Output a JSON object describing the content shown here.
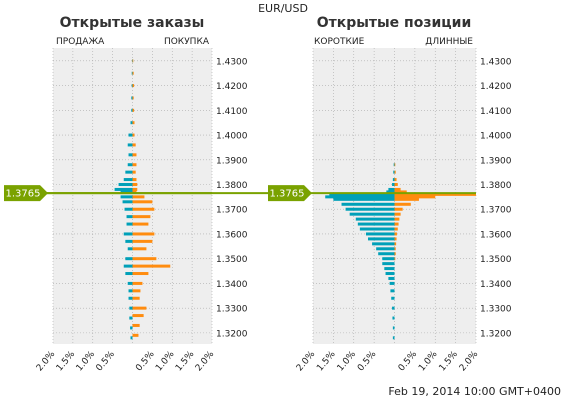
{
  "symbol": "EUR/USD",
  "timestamp": "Feb 19, 2014 10:00 GMT+0400",
  "current_price_label": "1.3765",
  "colors": {
    "short": "#00a0b8",
    "long": "#ff8c0f",
    "price": "#7aa200",
    "panel_bg": "#eeeeee",
    "grid": "#aaaaaa"
  },
  "chart_data": [
    {
      "type": "bar",
      "orientation": "horizontal",
      "title": "Открытые заказы",
      "left_label": "ПРОДАЖА",
      "right_label": "ПОКУПКА",
      "y_ticks": [
        "1.4300",
        "1.4200",
        "1.4100",
        "1.4000",
        "1.3900",
        "1.3800",
        "1.3700",
        "1.3600",
        "1.3500",
        "1.3400",
        "1.3300",
        "1.3200"
      ],
      "y_tick_values": [
        1.43,
        1.42,
        1.41,
        1.4,
        1.39,
        1.38,
        1.37,
        1.36,
        1.35,
        1.34,
        1.33,
        1.32
      ],
      "ylim": [
        1.3155,
        1.4352
      ],
      "x_ticks": [
        "2.0%",
        "1.5%",
        "1.0%",
        "0.5%",
        "",
        "0.5%",
        "1.0%",
        "1.5%",
        "2.0%"
      ],
      "xlim": [
        -2.0,
        2.0
      ],
      "current_price": 1.3765,
      "grid": true,
      "profile": {
        "bin_size": 0.0005,
        "sell": [
          [
            1.43,
            0.01
          ],
          [
            1.425,
            0.02
          ],
          [
            1.42,
            0.02
          ],
          [
            1.415,
            0.03
          ],
          [
            1.41,
            0.03
          ],
          [
            1.405,
            0.05
          ],
          [
            1.4,
            0.1
          ],
          [
            1.396,
            0.12
          ],
          [
            1.392,
            0.1
          ],
          [
            1.388,
            0.12
          ],
          [
            1.385,
            0.18
          ],
          [
            1.382,
            0.22
          ],
          [
            1.38,
            0.35
          ],
          [
            1.378,
            0.45
          ],
          [
            1.377,
            0.3
          ],
          [
            1.375,
            0.3
          ],
          [
            1.373,
            0.25
          ],
          [
            1.37,
            0.2
          ],
          [
            1.367,
            0.15
          ],
          [
            1.364,
            0.15
          ],
          [
            1.36,
            0.22
          ],
          [
            1.357,
            0.18
          ],
          [
            1.354,
            0.12
          ],
          [
            1.35,
            0.18
          ],
          [
            1.347,
            0.22
          ],
          [
            1.344,
            0.18
          ],
          [
            1.34,
            0.12
          ],
          [
            1.337,
            0.1
          ],
          [
            1.334,
            0.1
          ],
          [
            1.33,
            0.08
          ],
          [
            1.326,
            0.08
          ],
          [
            1.322,
            0.06
          ],
          [
            1.318,
            0.05
          ]
        ],
        "buy": [
          [
            1.43,
            0.02
          ],
          [
            1.425,
            0.03
          ],
          [
            1.42,
            0.04
          ],
          [
            1.415,
            0.03
          ],
          [
            1.41,
            0.04
          ],
          [
            1.405,
            0.05
          ],
          [
            1.4,
            0.05
          ],
          [
            1.396,
            0.08
          ],
          [
            1.392,
            0.1
          ],
          [
            1.388,
            0.1
          ],
          [
            1.385,
            0.08
          ],
          [
            1.382,
            0.1
          ],
          [
            1.38,
            0.12
          ],
          [
            1.378,
            0.12
          ],
          [
            1.377,
            0.1
          ],
          [
            1.375,
            0.3
          ],
          [
            1.373,
            0.5
          ],
          [
            1.37,
            0.55
          ],
          [
            1.367,
            0.45
          ],
          [
            1.364,
            0.4
          ],
          [
            1.36,
            0.55
          ],
          [
            1.357,
            0.5
          ],
          [
            1.354,
            0.35
          ],
          [
            1.35,
            0.6
          ],
          [
            1.347,
            0.95
          ],
          [
            1.344,
            0.4
          ],
          [
            1.34,
            0.25
          ],
          [
            1.337,
            0.2
          ],
          [
            1.334,
            0.18
          ],
          [
            1.33,
            0.35
          ],
          [
            1.327,
            0.28
          ],
          [
            1.323,
            0.18
          ],
          [
            1.319,
            0.15
          ],
          [
            1.316,
            0.1
          ]
        ]
      }
    },
    {
      "type": "bar",
      "orientation": "horizontal",
      "title": "Открытые позиции",
      "left_label": "КОРОТКИЕ",
      "right_label": "ДЛИННЫЕ",
      "y_ticks": [
        "1.4300",
        "1.4200",
        "1.4100",
        "1.4000",
        "1.3900",
        "1.3800",
        "1.3700",
        "1.3600",
        "1.3500",
        "1.3400",
        "1.3300",
        "1.3200"
      ],
      "y_tick_values": [
        1.43,
        1.42,
        1.41,
        1.4,
        1.39,
        1.38,
        1.37,
        1.36,
        1.35,
        1.34,
        1.33,
        1.32
      ],
      "ylim": [
        1.3155,
        1.4352
      ],
      "x_ticks": [
        "2.0%",
        "1.5%",
        "1.0%",
        "0.5%",
        "",
        "0.5%",
        "1.0%",
        "1.5%",
        "2.0%"
      ],
      "xlim": [
        -2.0,
        2.0
      ],
      "current_price": 1.3765,
      "grid": true,
      "profile": {
        "bin_size": 0.0005,
        "short": [
          [
            1.388,
            0.02
          ],
          [
            1.385,
            0.03
          ],
          [
            1.382,
            0.04
          ],
          [
            1.38,
            0.06
          ],
          [
            1.378,
            0.15
          ],
          [
            1.377,
            0.2
          ],
          [
            1.376,
            1.6
          ],
          [
            1.375,
            1.7
          ],
          [
            1.374,
            1.5
          ],
          [
            1.372,
            1.3
          ],
          [
            1.37,
            1.2
          ],
          [
            1.368,
            1.1
          ],
          [
            1.366,
            0.95
          ],
          [
            1.364,
            0.9
          ],
          [
            1.362,
            0.85
          ],
          [
            1.36,
            0.7
          ],
          [
            1.358,
            0.65
          ],
          [
            1.356,
            0.55
          ],
          [
            1.354,
            0.45
          ],
          [
            1.352,
            0.4
          ],
          [
            1.35,
            0.3
          ],
          [
            1.348,
            0.3
          ],
          [
            1.346,
            0.25
          ],
          [
            1.344,
            0.22
          ],
          [
            1.342,
            0.15
          ],
          [
            1.34,
            0.12
          ],
          [
            1.337,
            0.1
          ],
          [
            1.334,
            0.08
          ],
          [
            1.33,
            0.06
          ],
          [
            1.326,
            0.05
          ],
          [
            1.322,
            0.04
          ],
          [
            1.318,
            0.04
          ]
        ],
        "long": [
          [
            1.388,
            0.02
          ],
          [
            1.385,
            0.03
          ],
          [
            1.382,
            0.05
          ],
          [
            1.38,
            0.08
          ],
          [
            1.378,
            0.15
          ],
          [
            1.377,
            0.3
          ],
          [
            1.376,
            2.0
          ],
          [
            1.375,
            1.0
          ],
          [
            1.374,
            0.6
          ],
          [
            1.372,
            0.4
          ],
          [
            1.37,
            0.2
          ],
          [
            1.368,
            0.15
          ],
          [
            1.366,
            0.12
          ],
          [
            1.364,
            0.1
          ],
          [
            1.362,
            0.08
          ],
          [
            1.36,
            0.06
          ],
          [
            1.358,
            0.05
          ],
          [
            1.356,
            0.04
          ],
          [
            1.354,
            0.03
          ],
          [
            1.352,
            0.03
          ],
          [
            1.35,
            0.02
          ]
        ]
      }
    }
  ]
}
